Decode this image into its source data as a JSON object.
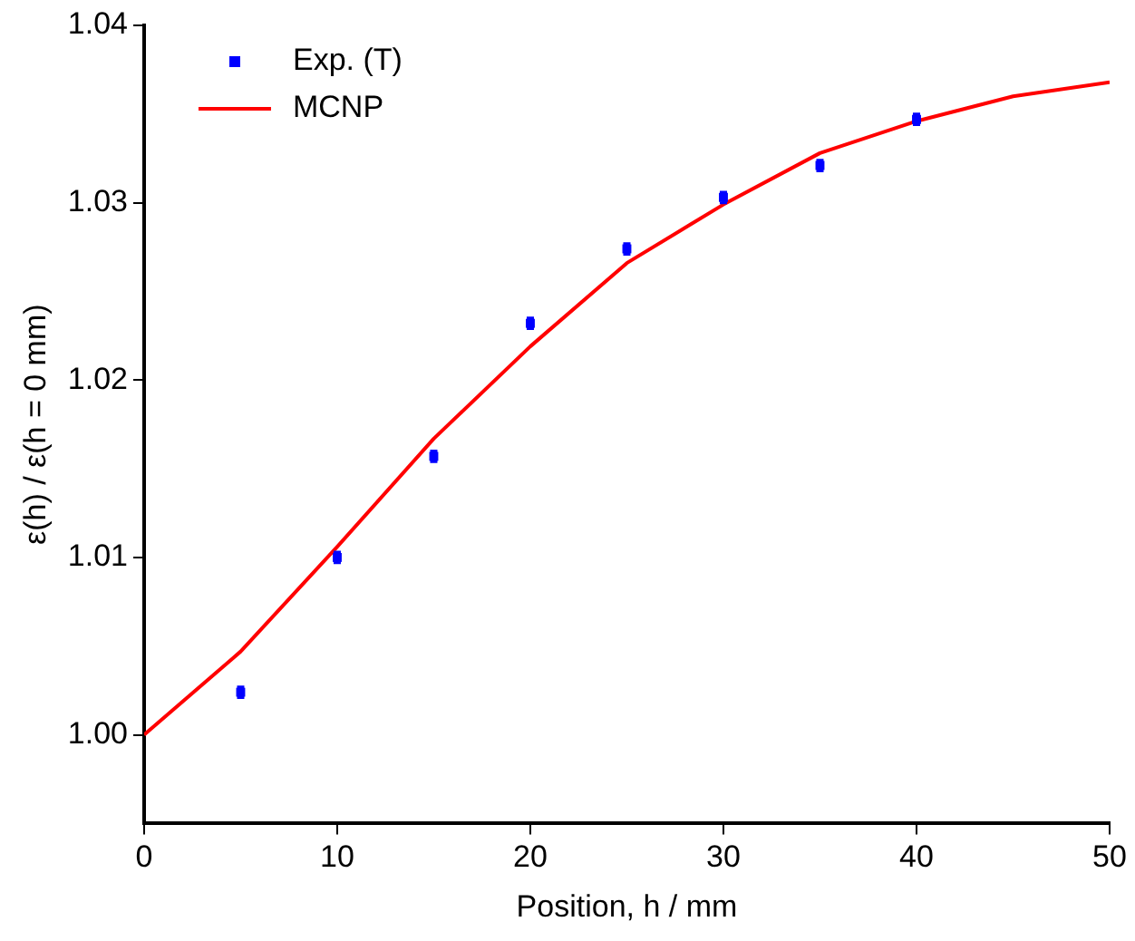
{
  "chart_data": {
    "type": "scatter",
    "xlabel": "Position, h / mm",
    "ylabel": "ε(h) / ε(h = 0 mm)",
    "xlim": [
      0,
      50
    ],
    "xticks": [
      0,
      10,
      20,
      30,
      40,
      50
    ],
    "ylim": [
      0.995,
      1.04
    ],
    "yticks": [
      {
        "value": 1.0,
        "label": "1.00"
      },
      {
        "value": 1.01,
        "label": "1.01"
      },
      {
        "value": 1.02,
        "label": "1.02"
      },
      {
        "value": 1.03,
        "label": "1.03"
      },
      {
        "value": 1.04,
        "label": "1.04"
      }
    ],
    "grid": false,
    "legend": "top left",
    "series": [
      {
        "name": "Exp. (T)",
        "type": "scatter",
        "color": "#0000ff",
        "marker": "square",
        "x": [
          5,
          10,
          15,
          20,
          25,
          30,
          35,
          40
        ],
        "values": [
          1.0024,
          1.01,
          1.0157,
          1.0232,
          1.0274,
          1.0303,
          1.0321,
          1.0347
        ],
        "errors": [
          0.0003,
          0.0003,
          0.0003,
          0.0003,
          0.0003,
          0.0003,
          0.0003,
          0.0003
        ]
      },
      {
        "name": "MCNP",
        "type": "line",
        "color": "#ff0000",
        "marker": "none",
        "line_style": "solid",
        "x": [
          0,
          5,
          10,
          15,
          20,
          25,
          30,
          35,
          40,
          45,
          50
        ],
        "values": [
          1.0,
          1.0047,
          1.0106,
          1.0167,
          1.0219,
          1.0266,
          1.0299,
          1.0328,
          1.0346,
          1.036,
          1.0368
        ]
      }
    ]
  }
}
